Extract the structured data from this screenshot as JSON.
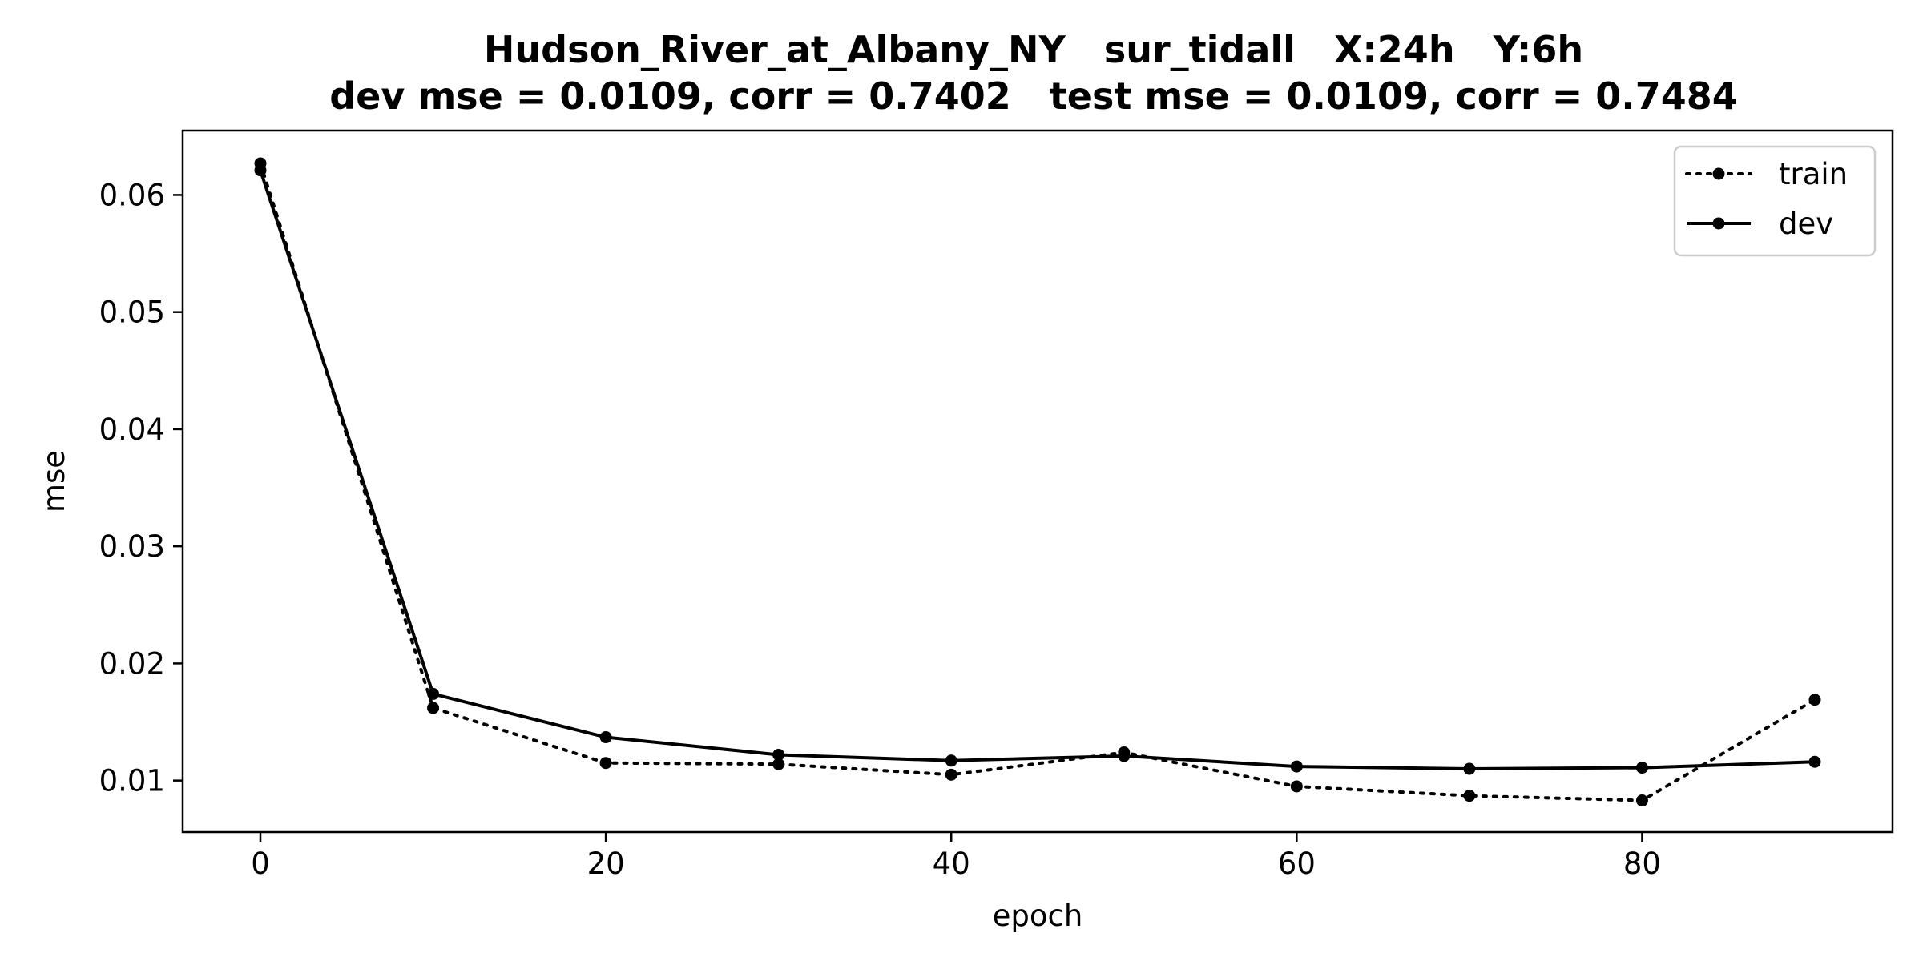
{
  "chart_data": {
    "type": "line",
    "title": "Hudson_River_at_Albany_NY   sur_tidall   X:24h   Y:6h",
    "subtitle": "dev mse = 0.0109, corr = 0.7402   test mse = 0.0109, corr = 0.7484",
    "xlabel": "epoch",
    "ylabel": "mse",
    "xlim": [
      -4.5,
      94.5
    ],
    "ylim": [
      0.0056,
      0.0655
    ],
    "xticks": [
      0,
      20,
      40,
      60,
      80
    ],
    "xtick_labels": [
      "0",
      "20",
      "40",
      "60",
      "80"
    ],
    "yticks": [
      0.01,
      0.02,
      0.03,
      0.04,
      0.05,
      0.06
    ],
    "ytick_labels": [
      "0.01",
      "0.02",
      "0.03",
      "0.04",
      "0.05",
      "0.06"
    ],
    "grid": false,
    "legend_position": "top-right",
    "x": [
      0,
      10,
      20,
      30,
      40,
      50,
      60,
      70,
      80,
      90
    ],
    "series": [
      {
        "name": "train",
        "style": "dotted",
        "color": "#000000",
        "values": [
          0.0627,
          0.0162,
          0.0115,
          0.0114,
          0.0105,
          0.0124,
          0.0095,
          0.0087,
          0.0083,
          0.0169
        ]
      },
      {
        "name": "dev",
        "style": "solid",
        "color": "#000000",
        "values": [
          0.0621,
          0.0174,
          0.0137,
          0.0122,
          0.0117,
          0.0121,
          0.0112,
          0.011,
          0.0111,
          0.0116
        ]
      }
    ]
  }
}
